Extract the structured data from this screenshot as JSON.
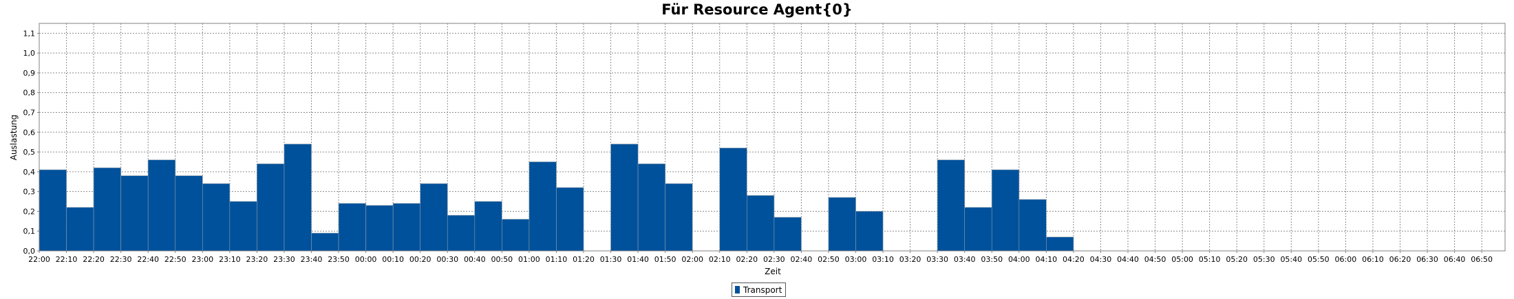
{
  "chart_data": {
    "type": "bar",
    "title": "Für Resource Agent{0}",
    "xlabel": "Zeit",
    "ylabel": "Auslastung",
    "ylim": [
      0,
      1.15
    ],
    "yticks": [
      "0,0",
      "0,1",
      "0,2",
      "0,3",
      "0,4",
      "0,5",
      "0,6",
      "0,7",
      "0,8",
      "0,9",
      "1,0",
      "1,1"
    ],
    "grid": true,
    "legend_position": "bottom-center",
    "color": "#00519b",
    "categories": [
      "22:00",
      "22:10",
      "22:20",
      "22:30",
      "22:40",
      "22:50",
      "23:00",
      "23:10",
      "23:20",
      "23:30",
      "23:40",
      "23:50",
      "00:00",
      "00:10",
      "00:20",
      "00:30",
      "00:40",
      "00:50",
      "01:00",
      "01:10",
      "01:20",
      "01:30",
      "01:40",
      "01:50",
      "02:00",
      "02:10",
      "02:20",
      "02:30",
      "02:40",
      "02:50",
      "03:00",
      "03:10",
      "03:20",
      "03:30",
      "03:40",
      "03:50",
      "04:00",
      "04:10",
      "04:20",
      "04:30",
      "04:40",
      "04:50",
      "05:00",
      "05:10",
      "05:20",
      "05:30",
      "05:40",
      "05:50",
      "06:00",
      "06:10",
      "06:20",
      "06:30",
      "06:40",
      "06:50"
    ],
    "series": [
      {
        "name": "Transport",
        "values": [
          0.41,
          0.22,
          0.42,
          0.38,
          0.46,
          0.38,
          0.34,
          0.25,
          0.44,
          0.54,
          0.09,
          0.24,
          0.23,
          0.24,
          0.34,
          0.18,
          0.25,
          0.16,
          0.45,
          0.32,
          0,
          0.54,
          0.44,
          0.34,
          0,
          0.52,
          0.28,
          0.17,
          0,
          0.27,
          0.2,
          0,
          0,
          0.46,
          0.22,
          0.41,
          0.26,
          0.07,
          0,
          0,
          0,
          0,
          0,
          0,
          0,
          0,
          0,
          0,
          0,
          0,
          0,
          0,
          0,
          0
        ]
      }
    ]
  }
}
